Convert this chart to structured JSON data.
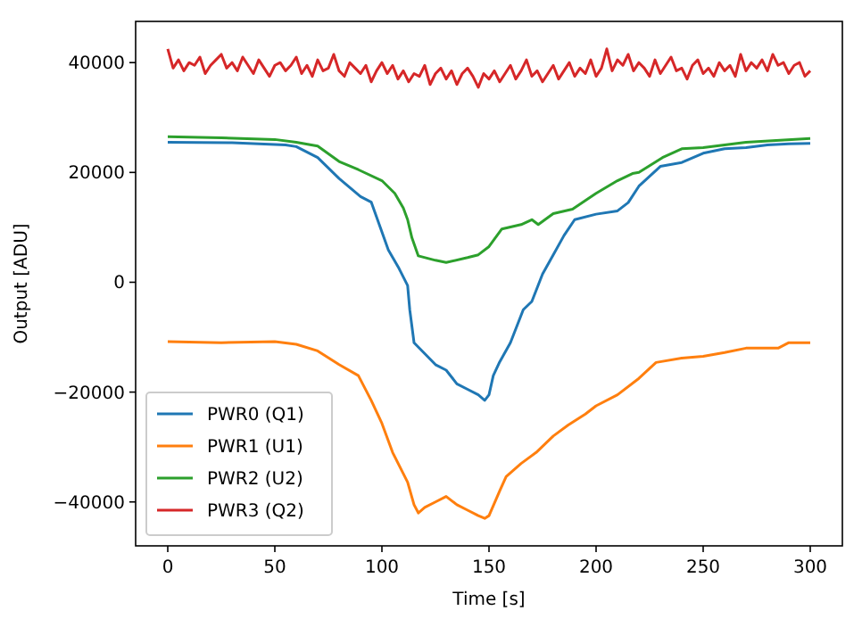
{
  "chart_data": {
    "type": "line",
    "xlabel": "Time [s]",
    "ylabel": "Output [ADU]",
    "xlim": [
      -15,
      315
    ],
    "ylim": [
      -48000,
      47500
    ],
    "xticks": [
      0,
      50,
      100,
      150,
      200,
      250,
      300
    ],
    "yticks": [
      -40000,
      -20000,
      0,
      20000,
      40000
    ],
    "grid": false,
    "legend": "bottom left",
    "line_style": "solid",
    "marker": "none",
    "series": [
      {
        "name": "PWR0 (Q1)",
        "color": "#1f77b4",
        "x": [
          0,
          30,
          55,
          60,
          70,
          80,
          90,
          95,
          103,
          108,
          112,
          113,
          115,
          120,
          125,
          130,
          135,
          140,
          145,
          148,
          150,
          152,
          155,
          160,
          166,
          170,
          175,
          180,
          185,
          190,
          200,
          210,
          215,
          220,
          230,
          240,
          250,
          260,
          270,
          280,
          290,
          300
        ],
        "values": [
          25500,
          25400,
          25000,
          24700,
          22700,
          18900,
          15600,
          14600,
          5900,
          2500,
          -600,
          -5000,
          -11000,
          -13000,
          -15000,
          -16000,
          -18500,
          -19500,
          -20500,
          -21500,
          -20500,
          -17000,
          -14500,
          -11000,
          -5000,
          -3500,
          1500,
          5000,
          8500,
          11400,
          12400,
          13000,
          14500,
          17500,
          21100,
          21800,
          23500,
          24300,
          24500,
          25000,
          25200,
          25300
        ]
      },
      {
        "name": "PWR1 (U1)",
        "color": "#ff7f0e",
        "x": [
          0,
          25,
          50,
          60,
          70,
          80,
          89,
          95,
          100,
          105,
          112,
          115,
          117,
          120,
          125,
          130,
          135,
          140,
          145,
          148,
          150,
          155,
          158,
          165,
          172,
          180,
          187,
          195,
          200,
          210,
          220,
          228,
          240,
          250,
          260,
          270,
          285,
          290,
          300
        ],
        "values": [
          -10800,
          -11000,
          -10800,
          -11300,
          -12500,
          -15000,
          -17000,
          -21500,
          -25700,
          -31000,
          -36400,
          -40500,
          -42000,
          -41000,
          -40000,
          -39000,
          -40500,
          -41500,
          -42500,
          -43000,
          -42500,
          -38000,
          -35400,
          -33000,
          -31000,
          -28000,
          -26000,
          -24000,
          -22500,
          -20500,
          -17500,
          -14600,
          -13800,
          -13500,
          -12800,
          -12000,
          -12000,
          -11000,
          -11000
        ]
      },
      {
        "name": "PWR2 (U2)",
        "color": "#2ca02c",
        "x": [
          0,
          25,
          50,
          60,
          70,
          80,
          89,
          100,
          106,
          110,
          112,
          114,
          117,
          125,
          130,
          140,
          145,
          150,
          156,
          165,
          170,
          173,
          180,
          189,
          200,
          210,
          217,
          220,
          231,
          240,
          250,
          270,
          300
        ],
        "values": [
          26500,
          26300,
          26000,
          25500,
          24800,
          22000,
          20500,
          18500,
          16200,
          13500,
          11400,
          8100,
          4800,
          4000,
          3600,
          4500,
          5000,
          6500,
          9700,
          10500,
          11400,
          10500,
          12500,
          13300,
          16200,
          18500,
          19800,
          20000,
          22700,
          24300,
          24500,
          25500,
          26200
        ]
      },
      {
        "name": "PWR3 (Q2)",
        "color": "#d62728",
        "x": [
          0,
          2.5,
          5,
          7.5,
          10,
          12.5,
          15,
          17.5,
          20,
          22.5,
          25,
          27.5,
          30,
          32.5,
          35,
          37.5,
          40,
          42.5,
          45,
          47.5,
          50,
          52.5,
          55,
          57.5,
          60,
          62.5,
          65,
          67.5,
          70,
          72.5,
          75,
          77.5,
          80,
          82.5,
          85,
          87.5,
          90,
          92.5,
          95,
          97.5,
          100,
          102.5,
          105,
          107.5,
          110,
          112.5,
          115,
          117.5,
          120,
          122.5,
          125,
          127.5,
          130,
          132.5,
          135,
          137.5,
          140,
          142.5,
          145,
          147.5,
          150,
          152.5,
          155,
          157.5,
          160,
          162.5,
          165,
          167.5,
          170,
          172.5,
          175,
          177.5,
          180,
          182.5,
          185,
          187.5,
          190,
          192.5,
          195,
          197.5,
          200,
          202.5,
          205,
          207.5,
          210,
          212.5,
          215,
          217.5,
          220,
          222.5,
          225,
          227.5,
          230,
          232.5,
          235,
          237.5,
          240,
          242.5,
          245,
          247.5,
          250,
          252.5,
          255,
          257.5,
          260,
          262.5,
          265,
          267.5,
          270,
          272.5,
          275,
          277.5,
          280,
          282.5,
          285,
          287.5,
          290,
          292.5,
          295,
          297.5,
          300
        ],
        "values": [
          42500,
          39000,
          40500,
          38500,
          40000,
          39500,
          41000,
          38000,
          39500,
          40500,
          41500,
          39000,
          40000,
          38500,
          41000,
          39500,
          38000,
          40500,
          39000,
          37500,
          39500,
          40000,
          38500,
          39500,
          41000,
          38000,
          39500,
          37500,
          40500,
          38500,
          39000,
          41500,
          38500,
          37500,
          40000,
          39000,
          38000,
          39500,
          36500,
          38500,
          40000,
          38000,
          39500,
          37000,
          38500,
          36500,
          38000,
          37500,
          39500,
          36000,
          38000,
          39000,
          37000,
          38500,
          36000,
          38000,
          39000,
          37500,
          35500,
          38000,
          37000,
          38500,
          36500,
          38000,
          39500,
          37000,
          38500,
          40500,
          37500,
          38500,
          36500,
          38000,
          39500,
          37000,
          38500,
          40000,
          37500,
          39000,
          38000,
          40500,
          37500,
          39000,
          42500,
          38500,
          40500,
          39500,
          41500,
          38500,
          40000,
          39000,
          37500,
          40500,
          38000,
          39500,
          41000,
          38500,
          39000,
          37000,
          39500,
          40500,
          38000,
          39000,
          37500,
          40000,
          38500,
          39500,
          37500,
          41500,
          38500,
          40000,
          39000,
          40500,
          38500,
          41500,
          39500,
          40000,
          38000,
          39500,
          40000,
          37500,
          38500
        ]
      }
    ]
  }
}
